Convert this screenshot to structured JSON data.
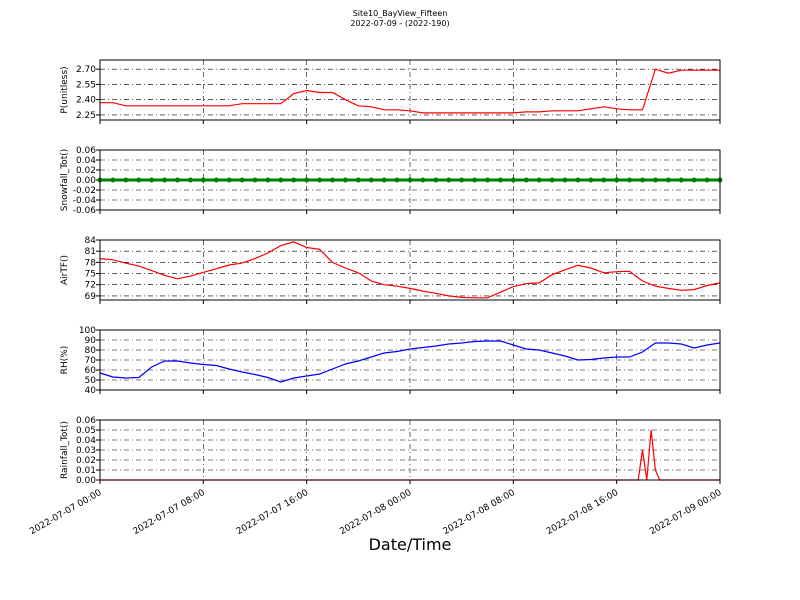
{
  "header": {
    "title": "Site10_BayView_Fifteen",
    "subtitle": "2022-07-09 - (2022-190)"
  },
  "x_label": "Date/Time",
  "x": [
    "2022-07-07 00:00",
    "2022-07-07 01:00",
    "2022-07-07 02:00",
    "2022-07-07 03:00",
    "2022-07-07 04:00",
    "2022-07-07 05:00",
    "2022-07-07 06:00",
    "2022-07-07 07:00",
    "2022-07-07 08:00",
    "2022-07-07 09:00",
    "2022-07-07 10:00",
    "2022-07-07 11:00",
    "2022-07-07 12:00",
    "2022-07-07 13:00",
    "2022-07-07 14:00",
    "2022-07-07 15:00",
    "2022-07-07 16:00",
    "2022-07-07 17:00",
    "2022-07-07 18:00",
    "2022-07-07 19:00",
    "2022-07-07 20:00",
    "2022-07-07 21:00",
    "2022-07-07 22:00",
    "2022-07-07 23:00",
    "2022-07-08 00:00",
    "2022-07-08 01:00",
    "2022-07-08 02:00",
    "2022-07-08 03:00",
    "2022-07-08 04:00",
    "2022-07-08 05:00",
    "2022-07-08 06:00",
    "2022-07-08 07:00",
    "2022-07-08 08:00",
    "2022-07-08 09:00",
    "2022-07-08 10:00",
    "2022-07-08 11:00",
    "2022-07-08 12:00",
    "2022-07-08 13:00",
    "2022-07-08 14:00",
    "2022-07-08 15:00",
    "2022-07-08 16:00",
    "2022-07-08 17:00",
    "2022-07-08 18:00",
    "2022-07-08 19:00",
    "2022-07-08 20:00",
    "2022-07-08 21:00",
    "2022-07-08 22:00",
    "2022-07-08 23:00",
    "2022-07-09 00:00"
  ],
  "xlim": [
    "2022-07-07 00:00",
    "2022-07-09 00:00"
  ],
  "xticks": [
    "2022-07-07 00:00",
    "2022-07-07 08:00",
    "2022-07-07 16:00",
    "2022-07-08 00:00",
    "2022-07-08 08:00",
    "2022-07-08 16:00",
    "2022-07-09 00:00"
  ],
  "chart_data": [
    {
      "type": "line",
      "y_label": "P(unitless)",
      "color": "#ff0000",
      "grid": true,
      "ylim": [
        2.2,
        2.79
      ],
      "yticks": [
        2.25,
        {
          "value": 2.4,
          "label": "2.40"
        },
        2.55,
        {
          "value": 2.7,
          "label": "2.70"
        }
      ],
      "values": [
        2.37,
        2.37,
        2.34,
        2.34,
        2.34,
        2.34,
        2.34,
        2.34,
        2.34,
        2.34,
        2.34,
        2.36,
        2.36,
        2.36,
        2.36,
        2.46,
        2.49,
        2.47,
        2.47,
        2.4,
        2.34,
        2.33,
        2.3,
        2.3,
        2.29,
        2.27,
        2.27,
        2.27,
        2.27,
        2.27,
        2.27,
        2.27,
        2.27,
        2.28,
        2.28,
        2.29,
        2.29,
        2.29,
        2.31,
        2.33,
        2.31,
        2.3,
        2.3,
        2.7,
        2.66,
        2.69,
        2.69,
        2.69,
        2.69
      ]
    },
    {
      "type": "line",
      "y_label": "Snowfall_Tot()",
      "color": "#008000",
      "marker": true,
      "grid": true,
      "ylim": [
        -0.06,
        0.06
      ],
      "yticks": [
        -0.06,
        -0.04,
        -0.02,
        {
          "value": 0,
          "label": "0.00"
        },
        0.02,
        0.04,
        0.06
      ],
      "values": [
        0,
        0,
        0,
        0,
        0,
        0,
        0,
        0,
        0,
        0,
        0,
        0,
        0,
        0,
        0,
        0,
        0,
        0,
        0,
        0,
        0,
        0,
        0,
        0,
        0,
        0,
        0,
        0,
        0,
        0,
        0,
        0,
        0,
        0,
        0,
        0,
        0,
        0,
        0,
        0,
        0,
        0,
        0,
        0,
        0,
        0,
        0,
        0,
        0
      ]
    },
    {
      "type": "line",
      "y_label": "AirTF()",
      "color": "#ff0000",
      "grid": true,
      "ylim": [
        67.9,
        84
      ],
      "yticks": [
        69,
        72,
        75,
        78,
        81,
        84
      ],
      "values": [
        79,
        78.7,
        77.8,
        77,
        75.8,
        74.5,
        73.6,
        74.3,
        75.3,
        76.3,
        77.3,
        77.8,
        79,
        80.5,
        82.5,
        83.5,
        82,
        81.5,
        78,
        76.5,
        75.2,
        73,
        72,
        71.6,
        71,
        70.3,
        69.7,
        69,
        68.6,
        68.5,
        68.5,
        70,
        71.5,
        72.3,
        72.5,
        74.7,
        76,
        77.2,
        76.5,
        75.2,
        75.5,
        75.6,
        73,
        71.6,
        71,
        70.5,
        70.7,
        71.8,
        72.5
      ]
    },
    {
      "type": "line",
      "y_label": "RH(%)",
      "color": "#0000ff",
      "grid": true,
      "ylim": [
        40,
        100
      ],
      "yticks": [
        40,
        50,
        60,
        70,
        80,
        90,
        100
      ],
      "values": [
        57,
        53,
        52,
        52.5,
        63,
        69,
        69,
        67,
        65.5,
        64.5,
        61,
        58,
        55.5,
        52.5,
        48,
        52,
        54,
        56,
        61,
        66,
        69,
        73,
        77,
        78.5,
        81,
        82.5,
        84,
        86,
        87,
        88.5,
        89,
        89,
        85,
        81,
        80,
        77,
        74,
        70,
        70.5,
        72,
        73,
        73,
        78,
        87,
        87,
        86,
        82,
        85,
        87
      ]
    },
    {
      "type": "line",
      "y_label": "Rainfall_Tot()",
      "color": "#ff0000",
      "grid": true,
      "ylim": [
        0,
        0.06
      ],
      "yticks": [
        {
          "value": 0,
          "label": "0.00"
        },
        0.01,
        0.02,
        0.03,
        0.04,
        0.05,
        0.06
      ],
      "x": [
        "2022-07-07 00:00",
        "2022-07-08 17:00",
        "2022-07-08 17:40",
        "2022-07-08 18:00",
        "2022-07-08 18:20",
        "2022-07-08 18:40",
        "2022-07-08 19:00",
        "2022-07-08 19:20",
        "2022-07-09 00:00"
      ],
      "values": [
        0,
        0,
        0,
        0.03,
        0,
        0.05,
        0.01,
        0,
        0
      ]
    }
  ]
}
